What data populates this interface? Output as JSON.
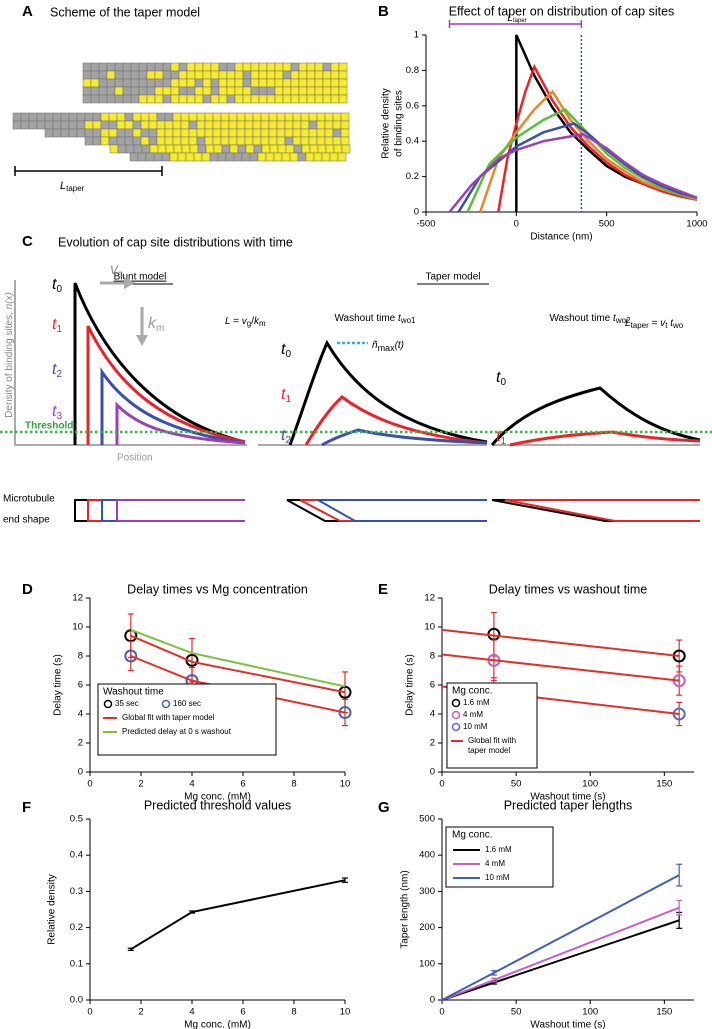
{
  "panel_A": {
    "label": "A",
    "title": "Scheme of the taper model",
    "taper_L": "L",
    "taper_sub": "taper"
  },
  "panel_C": {
    "label": "C",
    "title": "Evolution of cap site distributions with time",
    "blunt_title": "Blunt model",
    "taper_title": "Taper model",
    "washout1": [
      "Washout time ",
      "t",
      "wo1"
    ],
    "washout2": [
      "Washout time ",
      "t",
      "wo2"
    ],
    "y_label": [
      "Density of binding sites, ",
      "n(x)"
    ],
    "blunt_times": [
      [
        "t",
        "0"
      ],
      [
        "t",
        "1"
      ],
      [
        "t",
        "2"
      ],
      [
        "t",
        "3"
      ]
    ],
    "taper1_times": [
      [
        "t",
        "0"
      ],
      [
        "t",
        "1"
      ],
      [
        "t",
        "2"
      ]
    ],
    "taper2_times": [
      [
        "t",
        "0"
      ],
      [
        "t",
        "1"
      ]
    ],
    "v_s": [
      "v",
      "s"
    ],
    "k_m": [
      "k",
      "m"
    ],
    "L_eq": [
      "L = ",
      "v",
      "g",
      "/",
      "k",
      "m"
    ],
    "n_max": [
      "ñ",
      "max",
      "(t)"
    ],
    "L_taper_eq": [
      "L",
      "taper",
      " = ",
      "v",
      "t",
      " t",
      "wo"
    ],
    "threshold": "Threshold",
    "position": "Position",
    "end_shape": [
      "Microtubule",
      "end shape"
    ]
  },
  "chart_data": [
    {
      "type": "line",
      "panel_label": "B",
      "title": "Effect of taper on distribution of cap sites",
      "x_label": "Distance (nm)",
      "y_label": [
        "Relative density",
        "of binding sites"
      ],
      "xlim": [
        -500,
        1000
      ],
      "xticks": [
        -500,
        0,
        500,
        1000
      ],
      "ylim": [
        0,
        1
      ],
      "yticks": [
        0,
        0.2,
        0.4,
        0.6,
        0.8,
        1
      ],
      "vline": {
        "x": 360,
        "color": "#2a4fa8"
      },
      "span": {
        "x": [
          -370,
          360
        ],
        "color": "#9b3fb5",
        "label": "L",
        "label_sub": "taper"
      },
      "series": [
        {
          "color": "#000000",
          "style": "line",
          "x": [
            0,
            0,
            100,
            200,
            300,
            400,
            500,
            600,
            700,
            800,
            900,
            1000
          ],
          "values": [
            0,
            1,
            0.77,
            0.59,
            0.45,
            0.35,
            0.26,
            0.2,
            0.16,
            0.12,
            0.09,
            0.07
          ]
        },
        {
          "color": "#e8242a",
          "style": "line",
          "x": [
            -100,
            -50,
            0,
            50,
            100,
            200,
            300,
            400,
            500,
            600,
            700,
            800,
            900,
            1000
          ],
          "values": [
            0,
            0.3,
            0.5,
            0.68,
            0.82,
            0.63,
            0.48,
            0.37,
            0.28,
            0.21,
            0.16,
            0.12,
            0.09,
            0.07
          ]
        },
        {
          "color": "#e8862a",
          "style": "line",
          "x": [
            -200,
            -100,
            0,
            100,
            200,
            300,
            400,
            500,
            600,
            700,
            800,
            900,
            1000
          ],
          "values": [
            0,
            0.3,
            0.45,
            0.58,
            0.68,
            0.52,
            0.4,
            0.3,
            0.23,
            0.17,
            0.13,
            0.1,
            0.07
          ]
        },
        {
          "color": "#5bbf3a",
          "style": "line",
          "x": [
            -270,
            -150,
            0,
            150,
            270,
            400,
            500,
            600,
            700,
            800,
            900,
            1000
          ],
          "values": [
            0,
            0.27,
            0.42,
            0.52,
            0.58,
            0.44,
            0.33,
            0.25,
            0.19,
            0.14,
            0.1,
            0.08
          ]
        },
        {
          "color": "#3a4fa8",
          "style": "line",
          "x": [
            -320,
            -200,
            0,
            150,
            320,
            400,
            500,
            600,
            700,
            800,
            900,
            1000
          ],
          "values": [
            0,
            0.2,
            0.37,
            0.45,
            0.5,
            0.44,
            0.35,
            0.27,
            0.2,
            0.15,
            0.11,
            0.08
          ]
        },
        {
          "color": "#9b3fb5",
          "style": "line",
          "x": [
            -370,
            -250,
            -100,
            0,
            150,
            370,
            500,
            600,
            700,
            800,
            900,
            1000
          ],
          "values": [
            0,
            0.15,
            0.3,
            0.35,
            0.4,
            0.44,
            0.36,
            0.28,
            0.21,
            0.16,
            0.12,
            0.08
          ]
        }
      ]
    },
    {
      "type": "line",
      "panel_label": "D",
      "title": "Delay times vs Mg concentration",
      "x_label": "Mg conc. (mM)",
      "y_label": "Delay time (s)",
      "xlim": [
        0,
        10
      ],
      "xticks": [
        0,
        2,
        4,
        6,
        8,
        10
      ],
      "ylim": [
        0,
        12
      ],
      "yticks": [
        0,
        2,
        4,
        6,
        8,
        10,
        12
      ],
      "legend_title": "Washout time",
      "series": [
        {
          "name": "35 sec",
          "color": "#000000",
          "style": "markers",
          "error_color": "#e0302a",
          "x": [
            1.6,
            4,
            10
          ],
          "values": [
            9.4,
            7.7,
            5.5
          ],
          "errors": [
            1.5,
            1.5,
            1.4
          ]
        },
        {
          "name": "160 sec",
          "color": "#4a5cb5",
          "style": "markers",
          "error_color": "#e0302a",
          "x": [
            1.6,
            4,
            10
          ],
          "values": [
            8.0,
            6.3,
            4.1
          ],
          "errors": [
            1.0,
            0.9,
            0.9
          ]
        },
        {
          "name": "Global fit with taper model",
          "color": "#e0302a",
          "style": "line",
          "x": [
            1.6,
            4,
            10
          ],
          "values": [
            9.4,
            7.6,
            5.5
          ]
        },
        {
          "color": "#e0302a",
          "style": "line",
          "x": [
            1.6,
            4,
            10
          ],
          "values": [
            8.0,
            6.3,
            4.1
          ]
        },
        {
          "name": "Predicted delay at 0 s washout",
          "color": "#7ac143",
          "style": "line",
          "x": [
            1.6,
            4,
            10
          ],
          "values": [
            9.8,
            8.2,
            5.9
          ]
        }
      ]
    },
    {
      "type": "line",
      "panel_label": "E",
      "title": "Delay times vs washout time",
      "x_label": "Washout time (s)",
      "y_label": "Delay time (s)",
      "xlim": [
        0,
        170
      ],
      "xticks": [
        0,
        50,
        100,
        150
      ],
      "ylim": [
        0,
        12
      ],
      "yticks": [
        0,
        2,
        4,
        6,
        8,
        10,
        12
      ],
      "legend_title": "Mg conc.",
      "series": [
        {
          "name": "1.6 mM",
          "color": "#000000",
          "style": "markers",
          "error_color": "#e0302a",
          "x": [
            35,
            160
          ],
          "values": [
            9.5,
            8.0
          ],
          "errors": [
            1.5,
            1.1
          ]
        },
        {
          "name": "4 mM",
          "color": "#c060c0",
          "style": "markers",
          "error_color": "#e0302a",
          "x": [
            35,
            160
          ],
          "values": [
            7.7,
            6.3
          ],
          "errors": [
            1.4,
            1.0
          ]
        },
        {
          "name": "10 mM",
          "color": "#5a6dc0",
          "style": "markers",
          "error_color": "#e0302a",
          "x": [
            35,
            160
          ],
          "values": [
            5.5,
            4.0
          ],
          "errors": [
            1.0,
            0.8
          ]
        },
        {
          "name": "Global fit with taper model",
          "color": "#e0302a",
          "style": "line",
          "x": [
            0,
            160
          ],
          "values": [
            9.8,
            8.0
          ]
        },
        {
          "color": "#e0302a",
          "style": "line",
          "x": [
            0,
            160
          ],
          "values": [
            8.1,
            6.3
          ]
        },
        {
          "color": "#e0302a",
          "style": "line",
          "x": [
            0,
            160
          ],
          "values": [
            5.9,
            4.0
          ]
        }
      ]
    },
    {
      "type": "line",
      "panel_label": "F",
      "title": "Predicted threshold values",
      "x_label": "Mg conc. (mM)",
      "y_label": "Relative density",
      "xlim": [
        0,
        10
      ],
      "xticks": [
        0,
        2,
        4,
        6,
        8,
        10
      ],
      "ylim": [
        0,
        0.5
      ],
      "yticks": [
        {
          "value": 0,
          "label": "0.0"
        },
        0.1,
        0.2,
        0.3,
        0.4,
        0.5
      ],
      "series": [
        {
          "color": "#000000",
          "style": "line",
          "x": [
            1.6,
            4,
            10
          ],
          "values": [
            0.14,
            0.243,
            0.331
          ],
          "errors": [
            0.003,
            0.003,
            0.006
          ]
        }
      ]
    },
    {
      "type": "line",
      "panel_label": "G",
      "title": "Predicted taper lengths",
      "x_label": "Washout time (s)",
      "y_label": "Taper length (nm)",
      "xlim": [
        0,
        170
      ],
      "xticks": [
        0,
        50,
        100,
        150
      ],
      "ylim": [
        0,
        500
      ],
      "yticks": [
        0,
        100,
        200,
        300,
        400,
        500
      ],
      "legend_title": "Mg conc.",
      "series": [
        {
          "name": "1.6 mM",
          "color": "#000000",
          "style": "line",
          "x": [
            0,
            35,
            160
          ],
          "values": [
            0,
            48,
            220
          ],
          "errors": [
            0,
            4,
            22
          ]
        },
        {
          "name": "4 mM",
          "color": "#c25ec6",
          "style": "line",
          "x": [
            0,
            35,
            160
          ],
          "values": [
            0,
            55,
            255
          ],
          "errors": [
            0,
            5,
            20
          ]
        },
        {
          "name": "10 mM",
          "color": "#3f5fb0",
          "style": "line",
          "x": [
            0,
            35,
            160
          ],
          "values": [
            0,
            75,
            345
          ],
          "errors": [
            0,
            6,
            30
          ]
        }
      ]
    }
  ]
}
